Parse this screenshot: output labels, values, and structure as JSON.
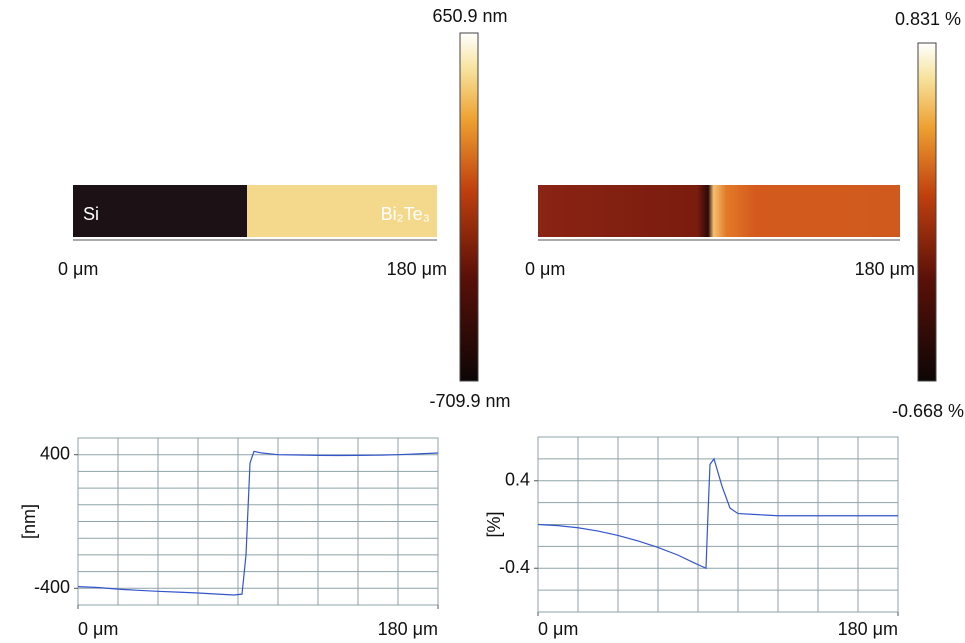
{
  "images": [
    {
      "labels": [
        "Si",
        "Bi₂Te₃"
      ],
      "x_start": "0 μm",
      "x_end": "180 μm",
      "colorbar_max": "650.9 nm",
      "colorbar_min": "-709.9 nm"
    },
    {
      "x_start": "0 μm",
      "x_end": "180 μm",
      "colorbar_max": "0.831 %",
      "colorbar_min": "-0.668 %"
    }
  ],
  "chart_data": [
    {
      "type": "line",
      "y_label": "[nm]",
      "color": "#3355cc",
      "x": [
        0,
        10,
        20,
        30,
        40,
        50,
        60,
        70,
        78,
        82,
        84,
        86,
        88,
        92,
        100,
        110,
        120,
        130,
        140,
        150,
        160,
        170,
        180
      ],
      "values": [
        -390,
        -395,
        -405,
        -412,
        -418,
        -423,
        -428,
        -435,
        -440,
        -435,
        -200,
        350,
        420,
        410,
        400,
        398,
        396,
        395,
        396,
        397,
        400,
        405,
        410
      ],
      "xlim": [
        0,
        180
      ],
      "xticks": [
        {
          "value": 0,
          "label": "0 μm"
        },
        {
          "value": 180,
          "label": "180 μm"
        }
      ],
      "ylim": [
        -500,
        500
      ],
      "yticks": [
        -400,
        400
      ],
      "grid": true,
      "grid_xstep": 20,
      "grid_ystep": 100
    },
    {
      "type": "line",
      "y_label": "[%]",
      "color": "#3355cc",
      "x": [
        0,
        10,
        20,
        30,
        40,
        50,
        60,
        70,
        78,
        84,
        85,
        86,
        88,
        92,
        96,
        100,
        110,
        120,
        130,
        140,
        150,
        160,
        170,
        180
      ],
      "values": [
        0.0,
        -0.01,
        -0.03,
        -0.06,
        -0.1,
        -0.15,
        -0.21,
        -0.28,
        -0.35,
        -0.4,
        0.1,
        0.55,
        0.6,
        0.35,
        0.15,
        0.1,
        0.09,
        0.08,
        0.08,
        0.08,
        0.08,
        0.08,
        0.08,
        0.08
      ],
      "xlim": [
        0,
        180
      ],
      "xticks": [
        {
          "value": 0,
          "label": "0 μm"
        },
        {
          "value": 180,
          "label": "180 μm"
        }
      ],
      "ylim": [
        -0.8,
        0.8
      ],
      "yticks": [
        -0.4,
        0.4
      ],
      "grid": true,
      "grid_xstep": 20,
      "grid_ystep": 0.2
    }
  ]
}
